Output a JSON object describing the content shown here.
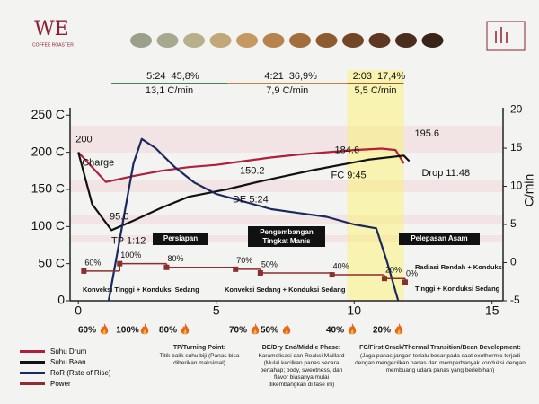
{
  "header": {
    "logo": "WE",
    "logo_sub": "COFFEE ROASTER"
  },
  "chart_data": {
    "type": "line",
    "y2_label": "C/min",
    "xlim": [
      -0.3,
      15.4
    ],
    "xticks": [
      0,
      5,
      10,
      15
    ],
    "ylim": [
      0,
      260
    ],
    "yticks": [
      {
        "value": 0,
        "label": "0"
      },
      {
        "value": 50,
        "label": "50 C"
      },
      {
        "value": 100,
        "label": "100 C"
      },
      {
        "value": 150,
        "label": "150 C"
      },
      {
        "value": 200,
        "label": "200 C"
      },
      {
        "value": 250,
        "label": "250 C"
      }
    ],
    "y2lim": [
      -5,
      20.3
    ],
    "y2ticks": [
      -5,
      0,
      5,
      10,
      15,
      20
    ],
    "grid": false,
    "legend": "below",
    "series": [
      {
        "name": "Suhu Drum",
        "color": "#b0203a",
        "x": [
          0,
          1,
          2,
          3,
          4,
          5,
          6,
          7,
          8,
          9,
          10,
          11,
          11.5,
          11.8
        ],
        "values": [
          200,
          160,
          168,
          175,
          180,
          183,
          188,
          193,
          197,
          200,
          203,
          205,
          203,
          185
        ]
      },
      {
        "name": "Suhu Bean",
        "color": "#111111",
        "x": [
          0,
          0.5,
          1.2,
          2,
          3,
          4,
          5.4,
          6.5,
          7.5,
          8.5,
          9.75,
          10.5,
          11.8,
          12
        ],
        "values": [
          200,
          130,
          95,
          108,
          125,
          140,
          150.2,
          160,
          168,
          176,
          184.6,
          190,
          195.6,
          188
        ]
      },
      {
        "name": "RoR (Rate of Rise)",
        "color": "#1b2a5e",
        "axis": "y2",
        "x": [
          1.1,
          1.6,
          2,
          2.3,
          2.8,
          3.5,
          4.2,
          5,
          6,
          7,
          8,
          9,
          10,
          10.8,
          11.2,
          11.6
        ],
        "values": [
          -5,
          5,
          13,
          16.2,
          15,
          12.5,
          10.5,
          9,
          8,
          7,
          6.5,
          6,
          5,
          4.5,
          0,
          -5
        ]
      },
      {
        "name": "Power",
        "color": "#8b2e2e",
        "axis": "power",
        "x": [
          0.2,
          1.5,
          3.2,
          5.7,
          6.6,
          9.2,
          11.1,
          11.85
        ],
        "values": [
          60,
          100,
          80,
          70,
          50,
          40,
          20,
          0
        ],
        "value_labels": [
          "60%",
          "100%",
          "80%",
          "70%",
          "50%",
          "40%",
          "20%",
          "0%"
        ]
      }
    ],
    "events": [
      {
        "label": "Charge",
        "time": 0,
        "temp": 200,
        "value_label": "200"
      },
      {
        "label": "TP 1:12",
        "time": 1.2,
        "temp": 95,
        "value_label": "95.0"
      },
      {
        "label": "DE 5:24",
        "time": 5.4,
        "temp": 150.2,
        "value_label": "150.2"
      },
      {
        "label": "FC 9:45",
        "time": 9.75,
        "temp": 184.6,
        "value_label": "184.6"
      },
      {
        "label": "Drop 11:48",
        "time": 11.8,
        "temp": 195.6,
        "value_label": "195.6"
      }
    ],
    "phase_summary": [
      {
        "duration": "5:24",
        "ratio": "45,8%",
        "ror": "13,1 C/min",
        "color": "#3a8a4a"
      },
      {
        "duration": "4:21",
        "ratio": "36,9%",
        "ror": "7,9 C/min",
        "color": "#c9803a"
      },
      {
        "duration": "2:03",
        "ratio": "17,4%",
        "ror": "5,5 C/min",
        "color": "#a0622a"
      }
    ],
    "phases": [
      "Persiapan",
      "Pengembangan Tingkat Manis",
      "Pelepasan Asam"
    ],
    "heat_notes": [
      "Konveksi Tinggi + Konduksi Sedang",
      "Konveksi Sedang + Konduksi Sedang",
      "Radiasi Rendah + Konduksi",
      "Tinggi + Konduksi Sedang"
    ]
  },
  "notes": [
    {
      "title": "TP/Turning Point:",
      "text": "Titik balik suhu biji (Panas bisa diberikan maksimal)"
    },
    {
      "title": "DE/Dry End/Middle Phase:",
      "text": "Karamelisasi dan Reaksi Maillard (Mulai kecilkan panas secara bertahap; body, sweetness, dan flavor biasanya mulai dikembangkan di fase ini)"
    },
    {
      "title": "FC/First Crack/Thermal Transition/Bean Development:",
      "text": "(Jaga panas jangan terlalu besar pada saat exothermic terjadi dengan mengecilkan panas dan memperbanyak konduksi dengan membuang udara panas yang berlebihan)"
    }
  ]
}
